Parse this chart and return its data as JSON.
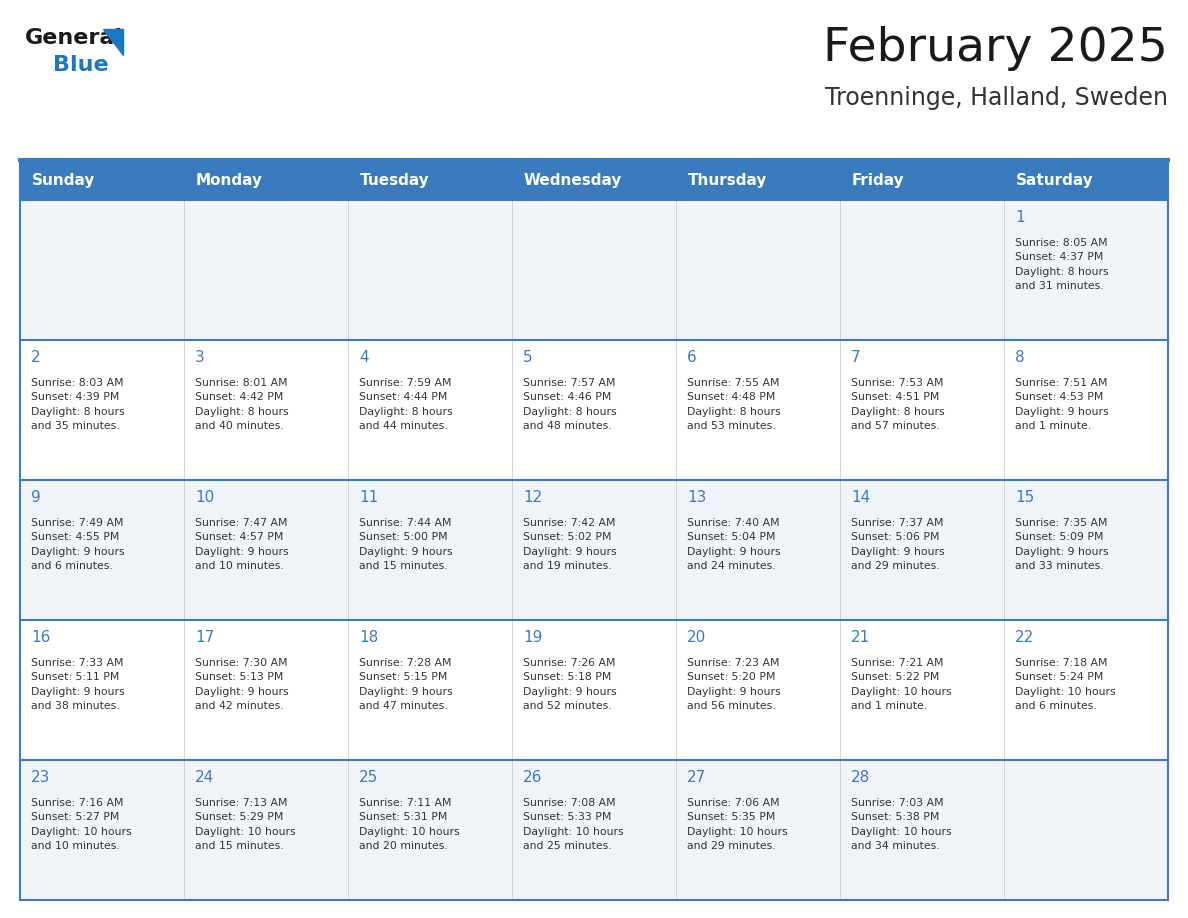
{
  "title": "February 2025",
  "subtitle": "Troenninge, Halland, Sweden",
  "header_bg": "#3a7bbf",
  "header_text": "#ffffff",
  "odd_row_bg": "#f0f4f8",
  "even_row_bg": "#ffffff",
  "border_color": "#3a7bbf",
  "day_headers": [
    "Sunday",
    "Monday",
    "Tuesday",
    "Wednesday",
    "Thursday",
    "Friday",
    "Saturday"
  ],
  "title_color": "#1a1a1a",
  "subtitle_color": "#333333",
  "cell_text_color": "#333333",
  "day_number_color": "#3a7bbf",
  "logo_general_color": "#1a1a1a",
  "logo_blue_color": "#1a78c2",
  "weeks": [
    [
      {
        "day": null,
        "info": null
      },
      {
        "day": null,
        "info": null
      },
      {
        "day": null,
        "info": null
      },
      {
        "day": null,
        "info": null
      },
      {
        "day": null,
        "info": null
      },
      {
        "day": null,
        "info": null
      },
      {
        "day": 1,
        "info": "Sunrise: 8:05 AM\nSunset: 4:37 PM\nDaylight: 8 hours\nand 31 minutes."
      }
    ],
    [
      {
        "day": 2,
        "info": "Sunrise: 8:03 AM\nSunset: 4:39 PM\nDaylight: 8 hours\nand 35 minutes."
      },
      {
        "day": 3,
        "info": "Sunrise: 8:01 AM\nSunset: 4:42 PM\nDaylight: 8 hours\nand 40 minutes."
      },
      {
        "day": 4,
        "info": "Sunrise: 7:59 AM\nSunset: 4:44 PM\nDaylight: 8 hours\nand 44 minutes."
      },
      {
        "day": 5,
        "info": "Sunrise: 7:57 AM\nSunset: 4:46 PM\nDaylight: 8 hours\nand 48 minutes."
      },
      {
        "day": 6,
        "info": "Sunrise: 7:55 AM\nSunset: 4:48 PM\nDaylight: 8 hours\nand 53 minutes."
      },
      {
        "day": 7,
        "info": "Sunrise: 7:53 AM\nSunset: 4:51 PM\nDaylight: 8 hours\nand 57 minutes."
      },
      {
        "day": 8,
        "info": "Sunrise: 7:51 AM\nSunset: 4:53 PM\nDaylight: 9 hours\nand 1 minute."
      }
    ],
    [
      {
        "day": 9,
        "info": "Sunrise: 7:49 AM\nSunset: 4:55 PM\nDaylight: 9 hours\nand 6 minutes."
      },
      {
        "day": 10,
        "info": "Sunrise: 7:47 AM\nSunset: 4:57 PM\nDaylight: 9 hours\nand 10 minutes."
      },
      {
        "day": 11,
        "info": "Sunrise: 7:44 AM\nSunset: 5:00 PM\nDaylight: 9 hours\nand 15 minutes."
      },
      {
        "day": 12,
        "info": "Sunrise: 7:42 AM\nSunset: 5:02 PM\nDaylight: 9 hours\nand 19 minutes."
      },
      {
        "day": 13,
        "info": "Sunrise: 7:40 AM\nSunset: 5:04 PM\nDaylight: 9 hours\nand 24 minutes."
      },
      {
        "day": 14,
        "info": "Sunrise: 7:37 AM\nSunset: 5:06 PM\nDaylight: 9 hours\nand 29 minutes."
      },
      {
        "day": 15,
        "info": "Sunrise: 7:35 AM\nSunset: 5:09 PM\nDaylight: 9 hours\nand 33 minutes."
      }
    ],
    [
      {
        "day": 16,
        "info": "Sunrise: 7:33 AM\nSunset: 5:11 PM\nDaylight: 9 hours\nand 38 minutes."
      },
      {
        "day": 17,
        "info": "Sunrise: 7:30 AM\nSunset: 5:13 PM\nDaylight: 9 hours\nand 42 minutes."
      },
      {
        "day": 18,
        "info": "Sunrise: 7:28 AM\nSunset: 5:15 PM\nDaylight: 9 hours\nand 47 minutes."
      },
      {
        "day": 19,
        "info": "Sunrise: 7:26 AM\nSunset: 5:18 PM\nDaylight: 9 hours\nand 52 minutes."
      },
      {
        "day": 20,
        "info": "Sunrise: 7:23 AM\nSunset: 5:20 PM\nDaylight: 9 hours\nand 56 minutes."
      },
      {
        "day": 21,
        "info": "Sunrise: 7:21 AM\nSunset: 5:22 PM\nDaylight: 10 hours\nand 1 minute."
      },
      {
        "day": 22,
        "info": "Sunrise: 7:18 AM\nSunset: 5:24 PM\nDaylight: 10 hours\nand 6 minutes."
      }
    ],
    [
      {
        "day": 23,
        "info": "Sunrise: 7:16 AM\nSunset: 5:27 PM\nDaylight: 10 hours\nand 10 minutes."
      },
      {
        "day": 24,
        "info": "Sunrise: 7:13 AM\nSunset: 5:29 PM\nDaylight: 10 hours\nand 15 minutes."
      },
      {
        "day": 25,
        "info": "Sunrise: 7:11 AM\nSunset: 5:31 PM\nDaylight: 10 hours\nand 20 minutes."
      },
      {
        "day": 26,
        "info": "Sunrise: 7:08 AM\nSunset: 5:33 PM\nDaylight: 10 hours\nand 25 minutes."
      },
      {
        "day": 27,
        "info": "Sunrise: 7:06 AM\nSunset: 5:35 PM\nDaylight: 10 hours\nand 29 minutes."
      },
      {
        "day": 28,
        "info": "Sunrise: 7:03 AM\nSunset: 5:38 PM\nDaylight: 10 hours\nand 34 minutes."
      },
      {
        "day": null,
        "info": null
      }
    ]
  ]
}
